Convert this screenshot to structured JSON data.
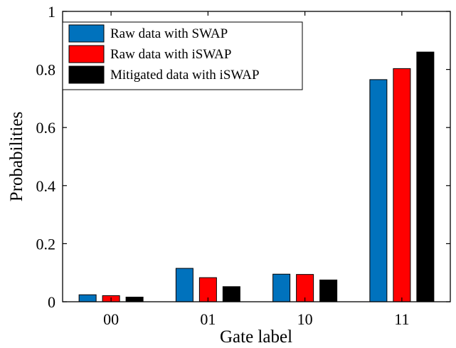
{
  "chart_data": {
    "type": "bar",
    "categories": [
      "00",
      "01",
      "10",
      "11"
    ],
    "series": [
      {
        "name": "Raw data with SWAP",
        "color": "#0072bd",
        "values": [
          0.024,
          0.115,
          0.095,
          0.765
        ]
      },
      {
        "name": "Raw data with iSWAP",
        "color": "#ff0000",
        "values": [
          0.021,
          0.083,
          0.094,
          0.803
        ]
      },
      {
        "name": "Mitigated data with iSWAP",
        "color": "#000000",
        "values": [
          0.016,
          0.052,
          0.075,
          0.86
        ]
      }
    ],
    "xlabel": "Gate label",
    "ylabel": "Probabilities",
    "ylim": [
      0,
      1
    ],
    "yticks": [
      0,
      0.2,
      0.4,
      0.6,
      0.8,
      1
    ],
    "ytick_labels": [
      "0",
      "0.2",
      "0.4",
      "0.6",
      "0.8",
      "1"
    ],
    "grid": false,
    "legend_position": "top-left"
  }
}
